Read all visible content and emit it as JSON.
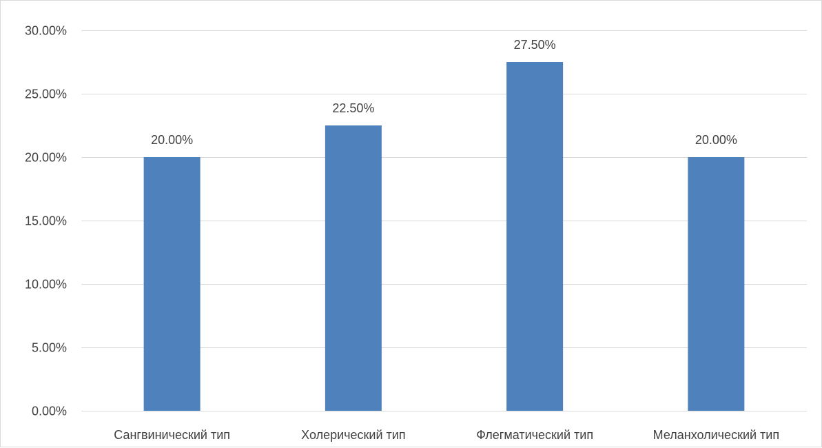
{
  "chart_data": {
    "type": "bar",
    "title": "",
    "xlabel": "",
    "ylabel": "",
    "categories": [
      "Сангвинический тип",
      "Холерический тип",
      "Флегматический тип",
      "Меланхолический тип"
    ],
    "values": [
      20.0,
      22.5,
      27.5,
      20.0
    ],
    "data_labels": [
      "20.00%",
      "22.50%",
      "27.50%",
      "20.00%"
    ],
    "ylim": [
      0,
      30
    ],
    "yticks": [
      0,
      5,
      10,
      15,
      20,
      25,
      30
    ],
    "ytick_labels": [
      "0.00%",
      "5.00%",
      "10.00%",
      "15.00%",
      "20.00%",
      "25.00%",
      "30.00%"
    ],
    "grid": true,
    "legend": "none",
    "bar_color": "#4f81bd"
  }
}
